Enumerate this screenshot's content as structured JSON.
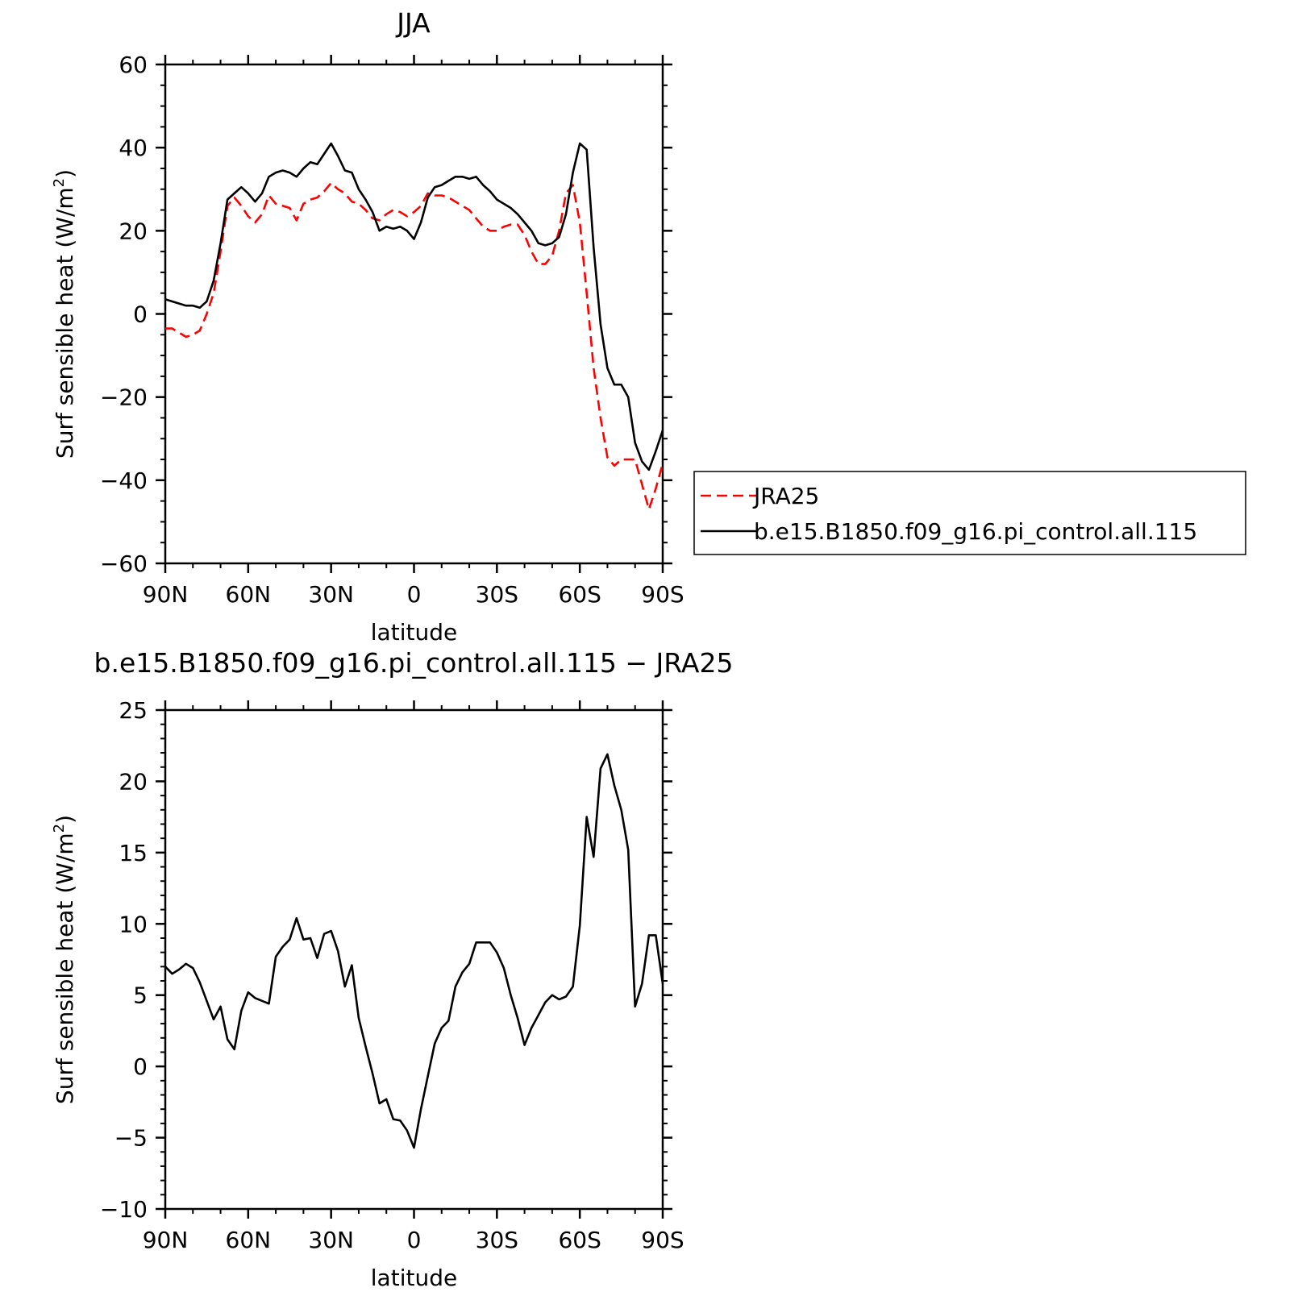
{
  "chart_data": [
    {
      "type": "line",
      "title": "JJA",
      "xlabel": "latitude",
      "ylabel_base": "Surf sensible heat (W/m",
      "ylabel_sup": "2",
      "ylabel_end": ")",
      "xlim": [
        90,
        -90
      ],
      "ylim": [
        -60,
        60
      ],
      "x_ticks": [
        90,
        60,
        30,
        0,
        -30,
        -60,
        -90
      ],
      "x_tick_labels": [
        "90N",
        "60N",
        "30N",
        "0",
        "30S",
        "60S",
        "90S"
      ],
      "y_ticks": [
        -60,
        -40,
        -20,
        0,
        20,
        40,
        60
      ],
      "y_tick_labels": [
        "−60",
        "−40",
        "−20",
        "0",
        "20",
        "40",
        "60"
      ],
      "legend_position": "right",
      "legend_labels": [
        "JRA25",
        "b.e15.B1850.f09_g16.pi_control.all.115"
      ],
      "series": [
        {
          "name": "JRA25",
          "color": "#ff0000",
          "dash": "dashed",
          "x": [
            90,
            87.5,
            85,
            82.5,
            80,
            77.5,
            75,
            72.5,
            70,
            67.5,
            65,
            62.5,
            60,
            57.5,
            55,
            52.5,
            50,
            47.5,
            45,
            42.5,
            40,
            37.5,
            35,
            32.5,
            30,
            27.5,
            25,
            22.5,
            20,
            17.5,
            15,
            12.5,
            10,
            7.5,
            5,
            2.5,
            0,
            -2.5,
            -5,
            -7.5,
            -10,
            -12.5,
            -15,
            -17.5,
            -20,
            -22.5,
            -25,
            -27.5,
            -30,
            -32.5,
            -35,
            -37.5,
            -40,
            -42.5,
            -45,
            -47.5,
            -50,
            -52.5,
            -55,
            -57.5,
            -60,
            -62.5,
            -65,
            -67.5,
            -70,
            -72.5,
            -75,
            -77.5,
            -80,
            -82.5,
            -85,
            -87.5,
            -90
          ],
          "y": [
            -3.5,
            -3.5,
            -4.5,
            -5.5,
            -5,
            -4,
            0,
            5,
            15,
            26,
            28,
            26,
            23.5,
            22,
            24,
            28.5,
            26.5,
            26,
            25.5,
            22.5,
            26.5,
            27.5,
            28,
            29.5,
            31.5,
            30,
            29,
            27,
            26.5,
            25,
            23,
            22.5,
            24,
            25,
            24.5,
            23.5,
            24.5,
            26,
            29,
            28.5,
            28.5,
            28,
            27,
            26,
            25,
            23,
            21,
            20,
            20,
            21,
            21.5,
            21.5,
            19,
            15,
            12,
            12,
            14,
            20,
            29,
            31,
            22,
            5,
            -13,
            -25,
            -34.5,
            -36.5,
            -35,
            -35,
            -35,
            -41,
            -47,
            -42,
            -36
          ]
        },
        {
          "name": "b.e15.B1850.f09_g16.pi_control.all.115",
          "color": "#000000",
          "dash": "solid",
          "x": [
            90,
            87.5,
            85,
            82.5,
            80,
            77.5,
            75,
            72.5,
            70,
            67.5,
            65,
            62.5,
            60,
            57.5,
            55,
            52.5,
            50,
            47.5,
            45,
            42.5,
            40,
            37.5,
            35,
            32.5,
            30,
            27.5,
            25,
            22.5,
            20,
            17.5,
            15,
            12.5,
            10,
            7.5,
            5,
            2.5,
            0,
            -2.5,
            -5,
            -7.5,
            -10,
            -12.5,
            -15,
            -17.5,
            -20,
            -22.5,
            -25,
            -27.5,
            -30,
            -32.5,
            -35,
            -37.5,
            -40,
            -42.5,
            -45,
            -47.5,
            -50,
            -52.5,
            -55,
            -57.5,
            -60,
            -62.5,
            -65,
            -67.5,
            -70,
            -72.5,
            -75,
            -77.5,
            -80,
            -82.5,
            -85,
            -87.5,
            -90
          ],
          "y": [
            3.5,
            3,
            2.5,
            2,
            2,
            1.5,
            3,
            8,
            17,
            27.5,
            29,
            30.5,
            29,
            27,
            29,
            33,
            34,
            34.5,
            34,
            33,
            35,
            36.5,
            36,
            38.5,
            41,
            38,
            34.5,
            34,
            30,
            27.5,
            24.5,
            20,
            21,
            20.5,
            21,
            20,
            18,
            22,
            28,
            30.5,
            31,
            32,
            33,
            33,
            32.5,
            33,
            31,
            29.5,
            27.5,
            26.5,
            25.5,
            24,
            22,
            20,
            17,
            16.5,
            17,
            18.5,
            24,
            34,
            41,
            39.5,
            16,
            -2.5,
            -13,
            -17,
            -17,
            -20,
            -31,
            -35.5,
            -37.5,
            -33,
            -28
          ]
        }
      ]
    },
    {
      "type": "line",
      "title": "b.e15.B1850.f09_g16.pi_control.all.115 − JRA25",
      "xlabel": "latitude",
      "ylabel_base": "Surf sensible heat (W/m",
      "ylabel_sup": "2",
      "ylabel_end": ")",
      "xlim": [
        90,
        -90
      ],
      "ylim": [
        -10,
        25
      ],
      "x_ticks": [
        90,
        60,
        30,
        0,
        -30,
        -60,
        -90
      ],
      "x_tick_labels": [
        "90N",
        "60N",
        "30N",
        "0",
        "30S",
        "60S",
        "90S"
      ],
      "y_ticks": [
        -10,
        -5,
        0,
        5,
        10,
        15,
        20,
        25
      ],
      "y_tick_labels": [
        "−10",
        "−5",
        "0",
        "5",
        "10",
        "15",
        "20",
        "25"
      ],
      "series": [
        {
          "color": "#000000",
          "dash": "solid",
          "x": [
            90,
            87.5,
            85,
            82.5,
            80,
            77.5,
            75,
            72.5,
            70,
            67.5,
            65,
            62.5,
            60,
            57.5,
            55,
            52.5,
            50,
            47.5,
            45,
            42.5,
            40,
            37.5,
            35,
            32.5,
            30,
            27.5,
            25,
            22.5,
            20,
            17.5,
            15,
            12.5,
            10,
            7.5,
            5,
            2.5,
            0,
            -2.5,
            -5,
            -7.5,
            -10,
            -12.5,
            -15,
            -17.5,
            -20,
            -22.5,
            -25,
            -27.5,
            -30,
            -32.5,
            -35,
            -37.5,
            -40,
            -42.5,
            -45,
            -47.5,
            -50,
            -52.5,
            -55,
            -57.5,
            -60,
            -62.5,
            -65,
            -67.5,
            -70,
            -72.5,
            -75,
            -77.5,
            -80,
            -82.5,
            -85,
            -87.5,
            -90
          ],
          "y": [
            7,
            6.5,
            6.8,
            7.2,
            6.9,
            5.9,
            4.6,
            3.3,
            4.2,
            1.9,
            1.2,
            3.9,
            5.2,
            4.8,
            4.6,
            4.4,
            7.7,
            8.4,
            8.9,
            10.4,
            8.9,
            9,
            7.6,
            9.3,
            9.5,
            8.1,
            5.6,
            7.1,
            3.4,
            1.4,
            -0.5,
            -2.6,
            -2.3,
            -3.7,
            -3.8,
            -4.5,
            -5.7,
            -3,
            -0.7,
            1.6,
            2.7,
            3.2,
            5.6,
            6.6,
            7.2,
            8.7,
            8.7,
            8.7,
            8,
            6.9,
            5,
            3.4,
            1.5,
            2.7,
            3.6,
            4.5,
            5,
            4.7,
            4.9,
            5.6,
            9.9,
            17.5,
            14.7,
            20.9,
            21.9,
            19.7,
            18,
            15.2,
            4.2,
            5.8,
            9.2,
            9.2,
            5.8
          ]
        }
      ]
    }
  ]
}
